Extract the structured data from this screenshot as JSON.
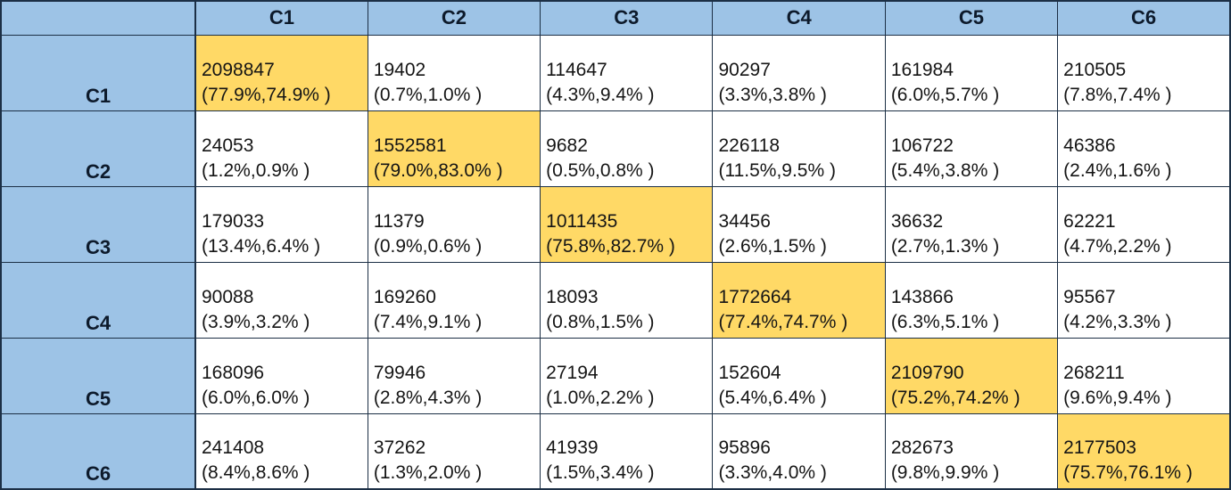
{
  "colors": {
    "header_background": "#9DC3E6",
    "diagonal_highlight": "#FFD966",
    "cell_background": "#FFFFFF",
    "grid_border": "#1C2F45",
    "text": "#151515"
  },
  "table": {
    "corner_label": "",
    "column_headers": [
      "C1",
      "C2",
      "C3",
      "C4",
      "C5",
      "C6"
    ],
    "rows": [
      {
        "label": "C1",
        "cells": [
          {
            "count": "2098847",
            "pct": "(77.9%,74.9% )"
          },
          {
            "count": "19402",
            "pct": "(0.7%,1.0% )"
          },
          {
            "count": "114647",
            "pct": "(4.3%,9.4% )"
          },
          {
            "count": "90297",
            "pct": "(3.3%,3.8% )"
          },
          {
            "count": "161984",
            "pct": "(6.0%,5.7% )"
          },
          {
            "count": "210505",
            "pct": "(7.8%,7.4% )"
          }
        ]
      },
      {
        "label": "C2",
        "cells": [
          {
            "count": "24053",
            "pct": "(1.2%,0.9% )"
          },
          {
            "count": "1552581",
            "pct": "(79.0%,83.0% )"
          },
          {
            "count": "9682",
            "pct": "(0.5%,0.8% )"
          },
          {
            "count": "226118",
            "pct": "(11.5%,9.5% )"
          },
          {
            "count": "106722",
            "pct": "(5.4%,3.8% )"
          },
          {
            "count": "46386",
            "pct": "(2.4%,1.6% )"
          }
        ]
      },
      {
        "label": "C3",
        "cells": [
          {
            "count": "179033",
            "pct": "(13.4%,6.4% )"
          },
          {
            "count": "11379",
            "pct": "(0.9%,0.6% )"
          },
          {
            "count": "1011435",
            "pct": "(75.8%,82.7% )"
          },
          {
            "count": "34456",
            "pct": "(2.6%,1.5% )"
          },
          {
            "count": "36632",
            "pct": "(2.7%,1.3% )"
          },
          {
            "count": "62221",
            "pct": "(4.7%,2.2% )"
          }
        ]
      },
      {
        "label": "C4",
        "cells": [
          {
            "count": "90088",
            "pct": "(3.9%,3.2% )"
          },
          {
            "count": "169260",
            "pct": "(7.4%,9.1% )"
          },
          {
            "count": "18093",
            "pct": "(0.8%,1.5% )"
          },
          {
            "count": "1772664",
            "pct": "(77.4%,74.7% )"
          },
          {
            "count": "143866",
            "pct": "(6.3%,5.1% )"
          },
          {
            "count": "95567",
            "pct": "(4.2%,3.3% )"
          }
        ]
      },
      {
        "label": "C5",
        "cells": [
          {
            "count": "168096",
            "pct": "(6.0%,6.0% )"
          },
          {
            "count": "79946",
            "pct": "(2.8%,4.3% )"
          },
          {
            "count": "27194",
            "pct": "(1.0%,2.2% )"
          },
          {
            "count": "152604",
            "pct": "(5.4%,6.4% )"
          },
          {
            "count": "2109790",
            "pct": "(75.2%,74.2% )"
          },
          {
            "count": "268211",
            "pct": "(9.6%,9.4% )"
          }
        ]
      },
      {
        "label": "C6",
        "cells": [
          {
            "count": "241408",
            "pct": "(8.4%,8.6% )"
          },
          {
            "count": "37262",
            "pct": "(1.3%,2.0% )"
          },
          {
            "count": "41939",
            "pct": "(1.5%,3.4% )"
          },
          {
            "count": "95896",
            "pct": "(3.3%,4.0% )"
          },
          {
            "count": "282673",
            "pct": "(9.8%,9.9% )"
          },
          {
            "count": "2177503",
            "pct": "(75.7%,76.1% )"
          }
        ]
      }
    ]
  },
  "chart_data": {
    "type": "table",
    "title": "",
    "row_labels": [
      "C1",
      "C2",
      "C3",
      "C4",
      "C5",
      "C6"
    ],
    "col_labels": [
      "C1",
      "C2",
      "C3",
      "C4",
      "C5",
      "C6"
    ],
    "counts": [
      [
        2098847,
        19402,
        114647,
        90297,
        161984,
        210505
      ],
      [
        24053,
        1552581,
        9682,
        226118,
        106722,
        46386
      ],
      [
        179033,
        11379,
        1011435,
        34456,
        36632,
        62221
      ],
      [
        90088,
        169260,
        18093,
        1772664,
        143866,
        95567
      ],
      [
        168096,
        79946,
        27194,
        152604,
        2109790,
        268211
      ],
      [
        241408,
        37262,
        41939,
        95896,
        282673,
        2177503
      ]
    ],
    "pct_first": [
      [
        77.9,
        0.7,
        4.3,
        3.3,
        6.0,
        7.8
      ],
      [
        1.2,
        79.0,
        0.5,
        11.5,
        5.4,
        2.4
      ],
      [
        13.4,
        0.9,
        75.8,
        2.6,
        2.7,
        4.7
      ],
      [
        3.9,
        7.4,
        0.8,
        77.4,
        6.3,
        4.2
      ],
      [
        6.0,
        2.8,
        1.0,
        5.4,
        75.2,
        9.6
      ],
      [
        8.4,
        1.3,
        1.5,
        3.3,
        9.8,
        75.7
      ]
    ],
    "pct_second": [
      [
        74.9,
        1.0,
        9.4,
        3.8,
        5.7,
        7.4
      ],
      [
        0.9,
        83.0,
        0.8,
        9.5,
        3.8,
        1.6
      ],
      [
        6.4,
        0.6,
        82.7,
        1.5,
        1.3,
        2.2
      ],
      [
        3.2,
        9.1,
        1.5,
        74.7,
        5.1,
        3.3
      ],
      [
        6.0,
        4.3,
        2.2,
        6.4,
        74.2,
        9.4
      ],
      [
        8.6,
        2.0,
        3.4,
        4.0,
        9.9,
        76.1
      ]
    ],
    "diagonal_highlighted": true,
    "legend_position": "none",
    "grid": true
  }
}
